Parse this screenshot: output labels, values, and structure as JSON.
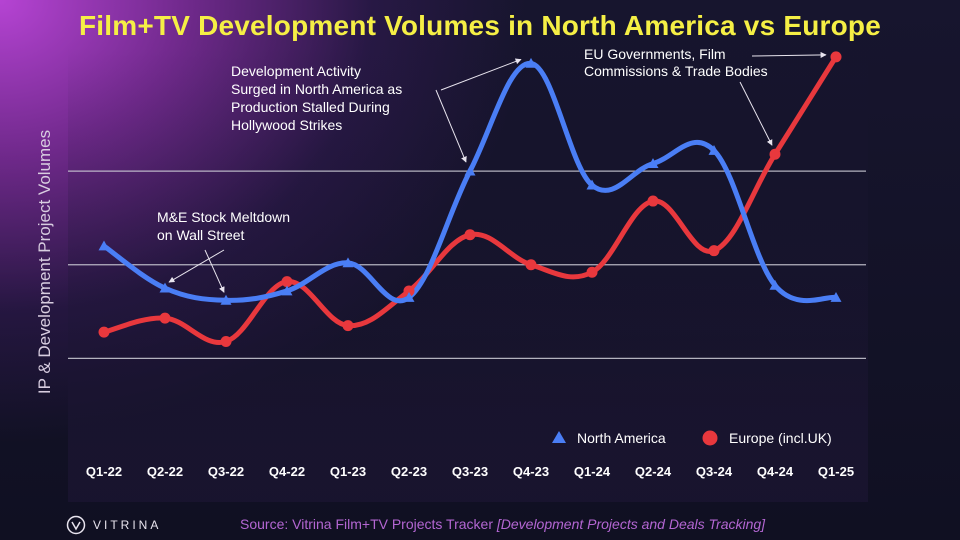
{
  "page": {
    "title": "Film+TV Development Volumes in North America vs Europe",
    "source_prefix": "Source: Vitrina Film+TV Projects Tracker",
    "source_italic": "[Development Projects and Deals Tracking]",
    "logo_text": "VITRINA",
    "logo_icon": "vitrina-logo-icon"
  },
  "colors": {
    "title": "#f5ef45",
    "north_america": "#4a7ef5",
    "europe": "#e8383d",
    "annotation": "#ffffff",
    "source": "#b366d2"
  },
  "chart_data": {
    "type": "line",
    "title": "Film+TV Development Volumes in North America vs Europe",
    "xlabel": "",
    "ylabel": "IP & Development Project Volumes",
    "categories": [
      "Q1-22",
      "Q2-22",
      "Q3-22",
      "Q4-22",
      "Q1-23",
      "Q2-23",
      "Q3-23",
      "Q4-23",
      "Q1-24",
      "Q2-24",
      "Q3-24",
      "Q4-24",
      "Q1-25"
    ],
    "ylim": [
      0,
      4.4
    ],
    "y_ticks_labeled": false,
    "grid": true,
    "legend_position": "bottom-right",
    "series": [
      {
        "name": "North America",
        "marker": "triangle",
        "smooth": true,
        "values": [
          2.2,
          1.75,
          1.62,
          1.72,
          2.02,
          1.65,
          3.0,
          4.15,
          2.85,
          3.08,
          3.22,
          1.78,
          1.65
        ]
      },
      {
        "name": "Europe (incl.UK)",
        "marker": "circle",
        "smooth": true,
        "values": [
          1.28,
          1.43,
          1.18,
          1.82,
          1.35,
          1.72,
          2.32,
          2.0,
          1.92,
          2.68,
          2.15,
          3.18,
          4.22
        ]
      }
    ],
    "annotations": [
      {
        "id": "mne",
        "lines": [
          "M&E Stock Meltdown",
          "on Wall Street"
        ],
        "points": [
          {
            "series": 0,
            "index": 1
          },
          {
            "series": 0,
            "index": 2
          }
        ]
      },
      {
        "id": "surge",
        "lines": [
          "Development Activity",
          "Surged in North America as",
          "Production Stalled During",
          "Hollywood Strikes"
        ],
        "points": [
          {
            "series": 0,
            "index": 6
          },
          {
            "series": 0,
            "index": 7
          }
        ]
      },
      {
        "id": "eu",
        "lines": [
          "EU Governments, Film",
          "Commissions & Trade Bodies"
        ],
        "points": [
          {
            "series": 1,
            "index": 11
          },
          {
            "series": 1,
            "index": 12
          }
        ]
      }
    ]
  }
}
